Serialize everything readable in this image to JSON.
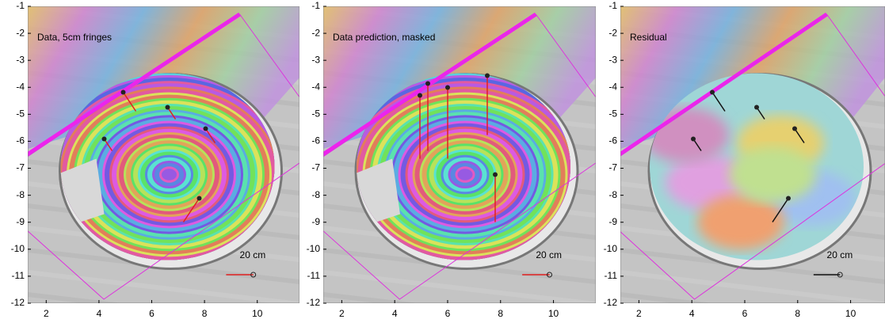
{
  "chart_data": [
    {
      "type": "map",
      "title": "Data, 5cm fringes",
      "scale_label": "20 cm",
      "xlim": [
        1.3,
        11.6
      ],
      "ylim": [
        -12,
        -1
      ],
      "xticks": [
        2,
        4,
        6,
        8,
        10
      ],
      "yticks": [
        -1,
        -2,
        -3,
        -4,
        -5,
        -6,
        -7,
        -8,
        -9,
        -10,
        -11,
        -12
      ],
      "arrow_color": "#e02020"
    },
    {
      "type": "map",
      "title": "Data prediction, masked",
      "scale_label": "20 cm",
      "xlim": [
        1.3,
        11.6
      ],
      "ylim": [
        -12,
        -1
      ],
      "xticks": [
        2,
        4,
        6,
        8,
        10
      ],
      "yticks": [
        -1,
        -2,
        -3,
        -4,
        -5,
        -6,
        -7,
        -8,
        -9,
        -10,
        -11,
        -12
      ],
      "arrow_color": "#e02020"
    },
    {
      "type": "residual",
      "title": "Residual",
      "scale_label": "20 cm",
      "xlim": [
        1.3,
        11.3
      ],
      "ylim": [
        -12,
        -1
      ],
      "xticks": [
        2,
        4,
        6,
        8,
        10
      ],
      "yticks": [
        -1,
        -2,
        -3,
        -4,
        -5,
        -6,
        -7,
        -8,
        -9,
        -10,
        -11,
        -12
      ],
      "arrow_color": "#111111"
    }
  ]
}
